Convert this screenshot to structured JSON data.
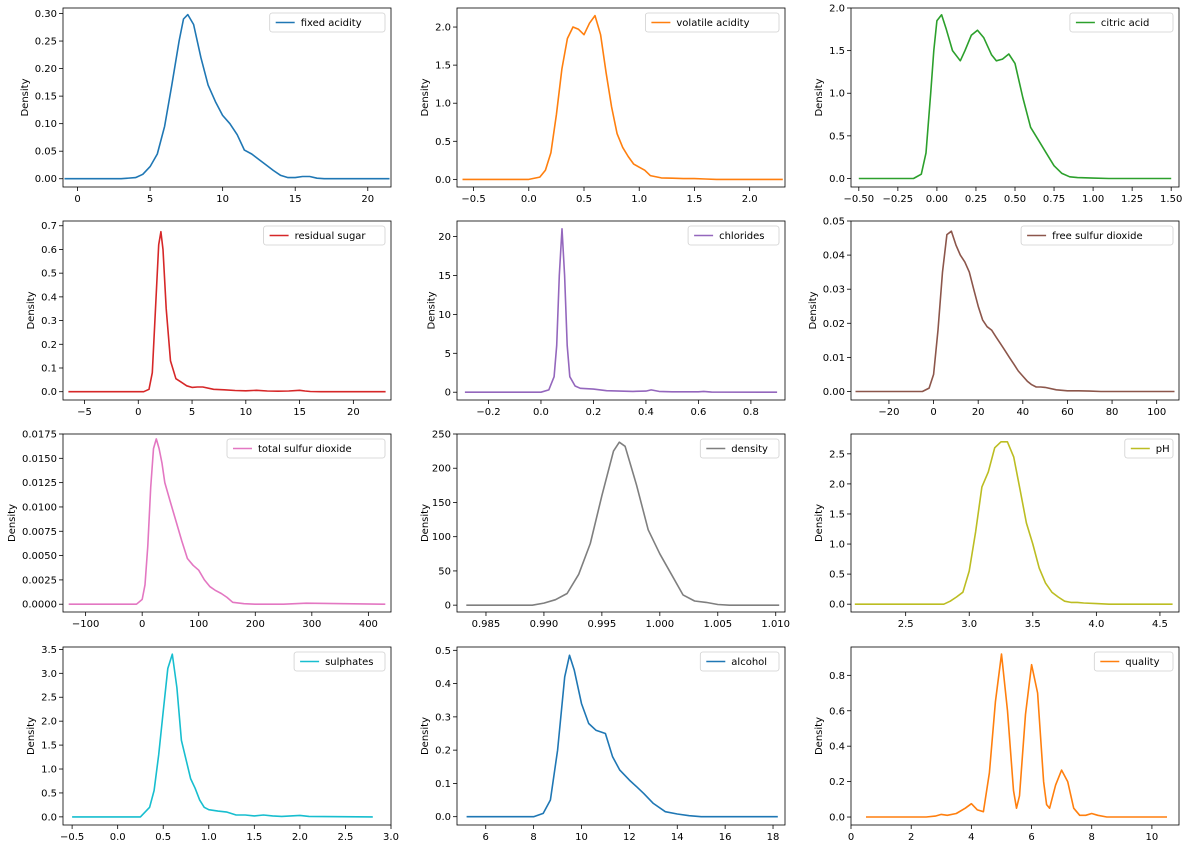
{
  "chart_data": [
    {
      "type": "line",
      "legend": "fixed acidity",
      "color": "#1f77b4",
      "ylabel": "Density",
      "xlim": [
        -1.0,
        21.6
      ],
      "ylim": [
        -0.015,
        0.31
      ],
      "xticks": [
        0,
        5,
        10,
        15,
        20
      ],
      "xtick_labels": [
        "0",
        "5",
        "10",
        "15",
        "20"
      ],
      "yticks": [
        0,
        0.05,
        0.1,
        0.15,
        0.2,
        0.25,
        0.3
      ],
      "ytick_labels": [
        "0.00",
        "0.05",
        "0.10",
        "0.15",
        "0.20",
        "0.25",
        "0.30"
      ],
      "x": [
        -0.9,
        3.0,
        4.0,
        4.5,
        5.0,
        5.5,
        6.0,
        6.5,
        7.0,
        7.3,
        7.6,
        8.0,
        8.5,
        9.0,
        9.5,
        10.0,
        10.5,
        11.0,
        11.5,
        12.0,
        12.5,
        13.0,
        13.5,
        14.0,
        14.5,
        15.0,
        15.5,
        16.0,
        16.5,
        17.0,
        21.5
      ],
      "y": [
        0.0,
        0.0,
        0.002,
        0.008,
        0.022,
        0.045,
        0.095,
        0.17,
        0.25,
        0.29,
        0.298,
        0.28,
        0.22,
        0.17,
        0.14,
        0.115,
        0.1,
        0.08,
        0.052,
        0.045,
        0.035,
        0.025,
        0.015,
        0.006,
        0.002,
        0.002,
        0.004,
        0.004,
        0.001,
        0.0,
        0.0
      ]
    },
    {
      "type": "line",
      "legend": "volatile acidity",
      "color": "#ff7f0e",
      "ylabel": "Density",
      "xlim": [
        -0.65,
        2.32
      ],
      "ylim": [
        -0.1,
        2.25
      ],
      "xticks": [
        -0.5,
        0,
        0.5,
        1.0,
        1.5,
        2.0
      ],
      "xtick_labels": [
        "−0.5",
        "0.0",
        "0.5",
        "1.0",
        "1.5",
        "2.0"
      ],
      "yticks": [
        0,
        0.5,
        1.0,
        1.5,
        2.0
      ],
      "ytick_labels": [
        "0.0",
        "0.5",
        "1.0",
        "1.5",
        "2.0"
      ],
      "x": [
        -0.6,
        0.0,
        0.1,
        0.15,
        0.2,
        0.25,
        0.3,
        0.35,
        0.4,
        0.45,
        0.5,
        0.55,
        0.6,
        0.65,
        0.7,
        0.75,
        0.8,
        0.85,
        0.9,
        0.95,
        1.0,
        1.05,
        1.1,
        1.2,
        1.3,
        1.4,
        1.5,
        1.6,
        1.7,
        2.3
      ],
      "y": [
        0.0,
        0.0,
        0.03,
        0.12,
        0.35,
        0.85,
        1.45,
        1.85,
        2.0,
        1.97,
        1.9,
        2.05,
        2.15,
        1.9,
        1.4,
        0.95,
        0.6,
        0.42,
        0.3,
        0.2,
        0.16,
        0.12,
        0.05,
        0.02,
        0.015,
        0.01,
        0.01,
        0.005,
        0.0,
        0.0
      ]
    },
    {
      "type": "line",
      "legend": "citric acid",
      "color": "#2ca02c",
      "ylabel": "Density",
      "xlim": [
        -0.55,
        1.55
      ],
      "ylim": [
        -0.1,
        2.0
      ],
      "xticks": [
        -0.5,
        -0.25,
        0,
        0.25,
        0.5,
        0.75,
        1.0,
        1.25,
        1.5
      ],
      "xtick_labels": [
        "−0.50",
        "−0.25",
        "0.00",
        "0.25",
        "0.50",
        "0.75",
        "1.00",
        "1.25",
        "1.50"
      ],
      "yticks": [
        0,
        0.5,
        1.0,
        1.5,
        2.0
      ],
      "ytick_labels": [
        "0.0",
        "0.5",
        "1.0",
        "1.5",
        "2.0"
      ],
      "x": [
        -0.5,
        -0.15,
        -0.1,
        -0.07,
        -0.04,
        -0.02,
        0.0,
        0.03,
        0.06,
        0.1,
        0.15,
        0.18,
        0.22,
        0.26,
        0.3,
        0.35,
        0.38,
        0.42,
        0.46,
        0.5,
        0.55,
        0.6,
        0.65,
        0.7,
        0.75,
        0.8,
        0.85,
        0.9,
        1.0,
        1.1,
        1.5
      ],
      "y": [
        0.0,
        0.0,
        0.05,
        0.3,
        1.0,
        1.5,
        1.85,
        1.92,
        1.75,
        1.5,
        1.38,
        1.5,
        1.68,
        1.74,
        1.65,
        1.45,
        1.38,
        1.4,
        1.46,
        1.35,
        0.95,
        0.6,
        0.45,
        0.3,
        0.15,
        0.06,
        0.02,
        0.01,
        0.005,
        0.0,
        0.0
      ]
    },
    {
      "type": "line",
      "legend": "residual sugar",
      "color": "#d62728",
      "ylabel": "Density",
      "xlim": [
        -7.0,
        23.5
      ],
      "ylim": [
        -0.035,
        0.72
      ],
      "xticks": [
        -5,
        0,
        5,
        10,
        15,
        20
      ],
      "xtick_labels": [
        "−5",
        "0",
        "5",
        "10",
        "15",
        "20"
      ],
      "yticks": [
        0,
        0.1,
        0.2,
        0.3,
        0.4,
        0.5,
        0.6,
        0.7
      ],
      "ytick_labels": [
        "0.0",
        "0.1",
        "0.2",
        "0.3",
        "0.4",
        "0.5",
        "0.6",
        "0.7"
      ],
      "x": [
        -6.5,
        0.5,
        1.0,
        1.3,
        1.6,
        1.9,
        2.1,
        2.3,
        2.6,
        3.0,
        3.5,
        4.0,
        4.5,
        5.0,
        5.5,
        6.0,
        7.0,
        8.0,
        9.0,
        10.0,
        11.0,
        12.0,
        13.0,
        14.0,
        15.0,
        15.5,
        16.0,
        17.0,
        23.0
      ],
      "y": [
        0.0,
        0.0,
        0.01,
        0.08,
        0.35,
        0.62,
        0.675,
        0.6,
        0.35,
        0.13,
        0.055,
        0.04,
        0.025,
        0.018,
        0.02,
        0.02,
        0.01,
        0.008,
        0.005,
        0.004,
        0.006,
        0.003,
        0.002,
        0.003,
        0.006,
        0.003,
        0.001,
        0.0,
        0.0
      ]
    },
    {
      "type": "line",
      "legend": "chlorides",
      "color": "#9467bd",
      "ylabel": "Density",
      "xlim": [
        -0.32,
        0.93
      ],
      "ylim": [
        -1.0,
        22.0
      ],
      "xticks": [
        -0.2,
        0,
        0.2,
        0.4,
        0.6,
        0.8
      ],
      "xtick_labels": [
        "−0.2",
        "0.0",
        "0.2",
        "0.4",
        "0.6",
        "0.8"
      ],
      "yticks": [
        0,
        5,
        10,
        15,
        20
      ],
      "ytick_labels": [
        "0",
        "5",
        "10",
        "15",
        "20"
      ],
      "x": [
        -0.29,
        0.0,
        0.03,
        0.05,
        0.06,
        0.07,
        0.08,
        0.09,
        0.1,
        0.11,
        0.13,
        0.15,
        0.2,
        0.25,
        0.3,
        0.35,
        0.4,
        0.42,
        0.45,
        0.5,
        0.6,
        0.62,
        0.65,
        0.9
      ],
      "y": [
        0.0,
        0.0,
        0.3,
        2.0,
        6.0,
        15.0,
        21.0,
        15.0,
        6.0,
        2.0,
        0.8,
        0.5,
        0.4,
        0.2,
        0.15,
        0.1,
        0.15,
        0.3,
        0.1,
        0.05,
        0.05,
        0.1,
        0.02,
        0.0
      ]
    },
    {
      "type": "line",
      "legend": "free sulfur dioxide",
      "color": "#8c564b",
      "ylabel": "Density",
      "xlim": [
        -37.0,
        110.0
      ],
      "ylim": [
        -0.0025,
        0.05
      ],
      "xticks": [
        -40,
        -20,
        0,
        20,
        40,
        60,
        80,
        100
      ],
      "xtick_labels": [
        "−40",
        "−20",
        "0",
        "20",
        "40",
        "60",
        "80",
        "100"
      ],
      "yticks": [
        0,
        0.01,
        0.02,
        0.03,
        0.04,
        0.05
      ],
      "ytick_labels": [
        "0.00",
        "0.01",
        "0.02",
        "0.03",
        "0.04",
        "0.05"
      ],
      "x": [
        -35.0,
        -5.0,
        -2.0,
        0.0,
        2.0,
        4.0,
        6.0,
        8.0,
        10.0,
        12.0,
        14.0,
        16.0,
        18.0,
        20.0,
        22.0,
        24.0,
        26.0,
        28.0,
        30.0,
        32.0,
        34.0,
        36.0,
        38.0,
        40.0,
        42.0,
        44.0,
        46.0,
        48.0,
        50.0,
        55.0,
        60.0,
        65.0,
        70.0,
        75.0,
        108.0
      ],
      "y": [
        0.0,
        0.0,
        0.001,
        0.005,
        0.018,
        0.035,
        0.046,
        0.047,
        0.043,
        0.04,
        0.038,
        0.035,
        0.03,
        0.025,
        0.021,
        0.019,
        0.018,
        0.016,
        0.014,
        0.012,
        0.01,
        0.008,
        0.006,
        0.0045,
        0.003,
        0.002,
        0.0013,
        0.0013,
        0.0012,
        0.0005,
        0.0002,
        0.0002,
        0.0001,
        0.0,
        0.0
      ]
    },
    {
      "type": "line",
      "legend": "total sulfur dioxide",
      "color": "#e377c2",
      "ylabel": "Density",
      "xlim": [
        -140.0,
        440.0
      ],
      "ylim": [
        -0.0008,
        0.0175
      ],
      "xticks": [
        -100,
        0,
        100,
        200,
        300,
        400
      ],
      "xtick_labels": [
        "−100",
        "0",
        "100",
        "200",
        "300",
        "400"
      ],
      "yticks": [
        0,
        0.0025,
        0.005,
        0.0075,
        0.01,
        0.0125,
        0.015,
        0.0175
      ],
      "ytick_labels": [
        "0.0000",
        "0.0025",
        "0.0050",
        "0.0075",
        "0.0100",
        "0.0125",
        "0.0150",
        "0.0175"
      ],
      "x": [
        -130.0,
        -10.0,
        0.0,
        5.0,
        10.0,
        15.0,
        20.0,
        25.0,
        30.0,
        35.0,
        40.0,
        50.0,
        60.0,
        70.0,
        80.0,
        90.0,
        100.0,
        110.0,
        120.0,
        130.0,
        140.0,
        150.0,
        160.0,
        180.0,
        200.0,
        250.0,
        290.0,
        430.0
      ],
      "y": [
        0.0,
        0.0,
        0.0005,
        0.002,
        0.006,
        0.012,
        0.016,
        0.017,
        0.016,
        0.0145,
        0.0125,
        0.0105,
        0.0085,
        0.0065,
        0.0047,
        0.004,
        0.0035,
        0.0025,
        0.0018,
        0.0014,
        0.0011,
        0.0007,
        0.0002,
        5e-05,
        0.0,
        0.0,
        0.0001,
        0.0
      ]
    },
    {
      "type": "line",
      "legend": "density",
      "color": "#7f7f7f",
      "ylabel": "Density",
      "xlim": [
        0.9825,
        1.0108
      ],
      "ylim": [
        -10.0,
        250.0
      ],
      "xticks": [
        0.985,
        0.99,
        0.995,
        1.0,
        1.005,
        1.01
      ],
      "xtick_labels": [
        "0.985",
        "0.990",
        "0.995",
        "1.000",
        "1.005",
        "1.010"
      ],
      "yticks": [
        0,
        50,
        100,
        150,
        200,
        250
      ],
      "ytick_labels": [
        "0",
        "50",
        "100",
        "150",
        "200",
        "250"
      ],
      "x": [
        0.9833,
        0.989,
        0.99,
        0.991,
        0.992,
        0.993,
        0.994,
        0.995,
        0.996,
        0.9965,
        0.997,
        0.998,
        0.999,
        1.0,
        1.001,
        1.002,
        1.003,
        1.004,
        1.005,
        1.006,
        1.0103
      ],
      "y": [
        0.0,
        0.0,
        3.0,
        8.0,
        17.0,
        45.0,
        90.0,
        160.0,
        225.0,
        238.0,
        232.0,
        175.0,
        110.0,
        75.0,
        45.0,
        15.0,
        6.0,
        4.0,
        1.0,
        0.0,
        0.0
      ]
    },
    {
      "type": "line",
      "legend": "pH",
      "color": "#bcbd22",
      "ylabel": "Density",
      "xlim": [
        2.07,
        4.65
      ],
      "ylim": [
        -0.13,
        2.83
      ],
      "xticks": [
        2.0,
        2.5,
        3.0,
        3.5,
        4.0,
        4.5
      ],
      "xtick_labels": [
        "2.0",
        "2.5",
        "3.0",
        "3.5",
        "4.0",
        "4.5"
      ],
      "yticks": [
        0,
        0.5,
        1.0,
        1.5,
        2.0,
        2.5
      ],
      "ytick_labels": [
        "0.0",
        "0.5",
        "1.0",
        "1.5",
        "2.0",
        "2.5"
      ],
      "x": [
        2.1,
        2.8,
        2.85,
        2.9,
        2.95,
        3.0,
        3.05,
        3.1,
        3.15,
        3.2,
        3.25,
        3.3,
        3.35,
        3.4,
        3.45,
        3.5,
        3.55,
        3.6,
        3.65,
        3.7,
        3.75,
        3.8,
        3.85,
        3.9,
        4.0,
        4.1,
        4.6
      ],
      "y": [
        0.0,
        0.0,
        0.05,
        0.12,
        0.2,
        0.55,
        1.2,
        1.95,
        2.2,
        2.6,
        2.7,
        2.7,
        2.45,
        1.9,
        1.35,
        1.0,
        0.6,
        0.35,
        0.2,
        0.12,
        0.05,
        0.03,
        0.03,
        0.02,
        0.01,
        0.0,
        0.0
      ]
    },
    {
      "type": "line",
      "legend": "sulphates",
      "color": "#17becf",
      "ylabel": "Density",
      "xlim": [
        -0.6,
        3.0
      ],
      "ylim": [
        -0.17,
        3.55
      ],
      "xticks": [
        -0.5,
        0,
        0.5,
        1.0,
        1.5,
        2.0,
        2.5,
        3.0
      ],
      "xtick_labels": [
        "−0.5",
        "0.0",
        "0.5",
        "1.0",
        "1.5",
        "2.0",
        "2.5",
        "3.0"
      ],
      "yticks": [
        0,
        0.5,
        1.0,
        1.5,
        2.0,
        2.5,
        3.0,
        3.5
      ],
      "ytick_labels": [
        "0.0",
        "0.5",
        "1.0",
        "1.5",
        "2.0",
        "2.5",
        "3.0",
        "3.5"
      ],
      "x": [
        -0.5,
        0.25,
        0.35,
        0.4,
        0.45,
        0.5,
        0.55,
        0.6,
        0.65,
        0.7,
        0.75,
        0.8,
        0.85,
        0.9,
        0.95,
        1.0,
        1.1,
        1.2,
        1.3,
        1.4,
        1.5,
        1.6,
        1.7,
        1.8,
        1.9,
        2.0,
        2.1,
        2.8
      ],
      "y": [
        0.0,
        0.0,
        0.2,
        0.55,
        1.3,
        2.2,
        3.1,
        3.4,
        2.7,
        1.6,
        1.2,
        0.8,
        0.6,
        0.35,
        0.2,
        0.15,
        0.12,
        0.1,
        0.04,
        0.04,
        0.02,
        0.04,
        0.02,
        0.01,
        0.02,
        0.03,
        0.01,
        0.0
      ]
    },
    {
      "type": "line",
      "legend": "alcohol",
      "color": "#1f77b4",
      "ylabel": "Density",
      "xlim": [
        4.8,
        18.5
      ],
      "ylim": [
        -0.025,
        0.51
      ],
      "xticks": [
        6,
        8,
        10,
        12,
        14,
        16,
        18
      ],
      "xtick_labels": [
        "6",
        "8",
        "10",
        "12",
        "14",
        "16",
        "18"
      ],
      "yticks": [
        0,
        0.1,
        0.2,
        0.3,
        0.4,
        0.5
      ],
      "ytick_labels": [
        "0.0",
        "0.1",
        "0.2",
        "0.3",
        "0.4",
        "0.5"
      ],
      "x": [
        5.2,
        8.0,
        8.4,
        8.7,
        9.0,
        9.3,
        9.5,
        9.7,
        10.0,
        10.3,
        10.6,
        11.0,
        11.3,
        11.6,
        12.0,
        12.3,
        12.6,
        13.0,
        13.5,
        14.0,
        14.5,
        15.0,
        18.2
      ],
      "y": [
        0.0,
        0.0,
        0.01,
        0.05,
        0.2,
        0.42,
        0.485,
        0.44,
        0.34,
        0.28,
        0.26,
        0.25,
        0.18,
        0.14,
        0.11,
        0.09,
        0.07,
        0.04,
        0.015,
        0.008,
        0.003,
        0.0,
        0.0
      ]
    },
    {
      "type": "line",
      "legend": "quality",
      "color": "#ff7f0e",
      "ylabel": "Density",
      "xlim": [
        0.0,
        10.9
      ],
      "ylim": [
        -0.045,
        0.96
      ],
      "xticks": [
        0,
        2,
        4,
        6,
        8,
        10
      ],
      "xtick_labels": [
        "0",
        "2",
        "4",
        "6",
        "8",
        "10"
      ],
      "yticks": [
        0,
        0.2,
        0.4,
        0.6,
        0.8
      ],
      "ytick_labels": [
        "0.0",
        "0.2",
        "0.4",
        "0.6",
        "0.8"
      ],
      "x": [
        0.5,
        2.5,
        2.8,
        3.0,
        3.2,
        3.5,
        3.8,
        4.0,
        4.2,
        4.4,
        4.6,
        4.8,
        5.0,
        5.2,
        5.4,
        5.5,
        5.6,
        5.8,
        6.0,
        6.2,
        6.4,
        6.5,
        6.6,
        6.8,
        7.0,
        7.2,
        7.4,
        7.6,
        7.8,
        8.0,
        8.2,
        8.5,
        9.0,
        10.5
      ],
      "y": [
        0.0,
        0.0,
        0.005,
        0.015,
        0.01,
        0.02,
        0.05,
        0.075,
        0.04,
        0.03,
        0.25,
        0.65,
        0.92,
        0.6,
        0.15,
        0.05,
        0.12,
        0.58,
        0.86,
        0.7,
        0.2,
        0.07,
        0.05,
        0.18,
        0.265,
        0.2,
        0.05,
        0.01,
        0.01,
        0.02,
        0.01,
        0.0,
        0.0,
        0.0
      ]
    }
  ]
}
